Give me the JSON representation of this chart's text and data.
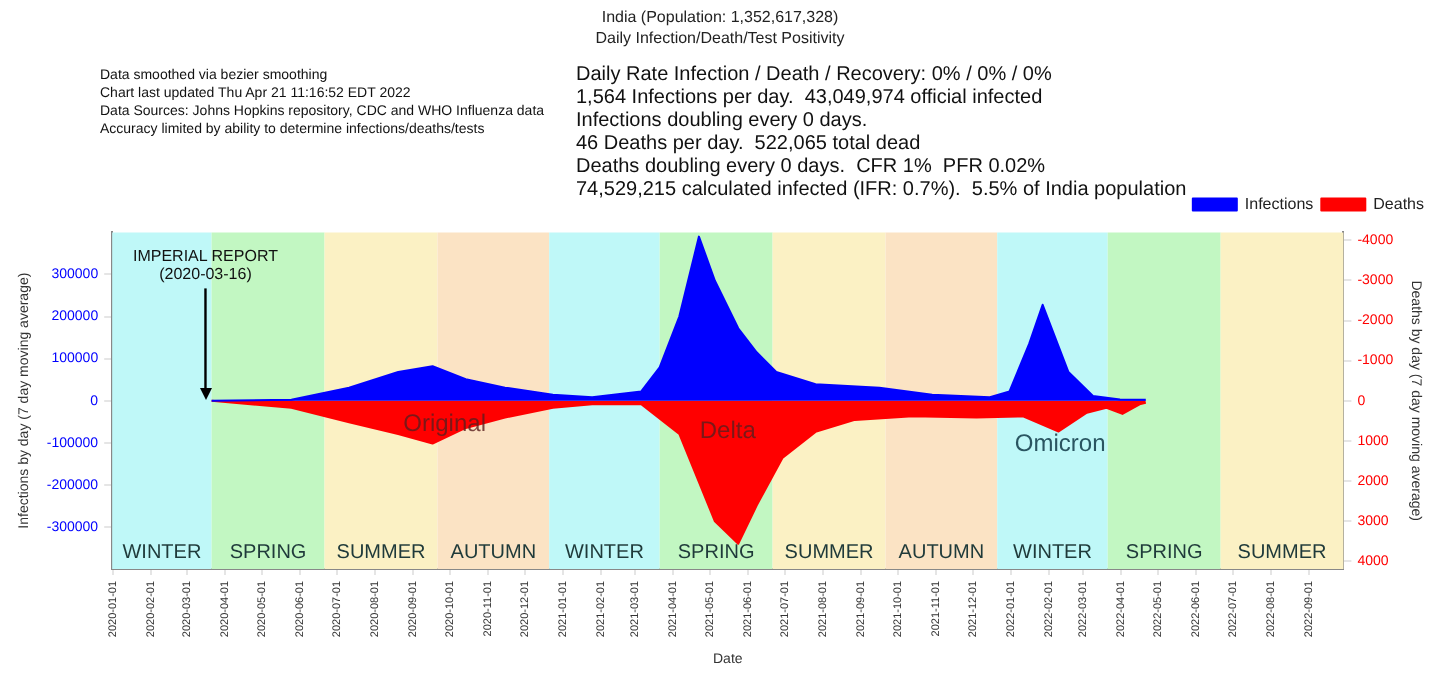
{
  "chart_data": {
    "type": "area",
    "title": "India (Population: 1,352,617,328)",
    "subtitle": "Daily Infection/Death/Test Positivity",
    "xlabel": "Date",
    "ylabel": "Infections by day (7 day moving average)",
    "y2label": "Deaths by day (7 day moving average)",
    "xlim": [
      "2019-12-31",
      "2022-09-29"
    ],
    "ylim": [
      -400000,
      400000
    ],
    "yticks": [
      -300000,
      -200000,
      -100000,
      0,
      100000,
      200000,
      300000
    ],
    "y2lim": [
      4200,
      -4200
    ],
    "y2ticks": [
      -4000,
      -3000,
      -2000,
      -1000,
      0,
      1000,
      2000,
      3000,
      4000
    ],
    "xticks": [
      "2020-01-01",
      "2020-02-01",
      "2020-03-01",
      "2020-04-01",
      "2020-05-01",
      "2020-06-01",
      "2020-07-01",
      "2020-08-01",
      "2020-09-01",
      "2020-10-01",
      "2020-11-01",
      "2020-12-01",
      "2021-01-01",
      "2021-02-01",
      "2021-03-01",
      "2021-04-01",
      "2021-05-01",
      "2021-06-01",
      "2021-07-01",
      "2021-08-01",
      "2021-09-01",
      "2021-10-01",
      "2021-11-01",
      "2021-12-01",
      "2022-01-01",
      "2022-02-01",
      "2022-03-01",
      "2022-04-01",
      "2022-05-01",
      "2022-06-01",
      "2022-07-01",
      "2022-08-01",
      "2022-09-01"
    ],
    "legend": "top right",
    "series": [
      {
        "name": "Infections",
        "color": "#0000ff",
        "x": [
          "2020-03-21",
          "2020-05-25",
          "2020-07-11",
          "2020-08-20",
          "2020-09-17",
          "2020-10-14",
          "2020-11-15",
          "2020-12-24",
          "2021-01-25",
          "2021-03-06",
          "2021-03-21",
          "2021-04-06",
          "2021-04-22",
          "2021-05-05",
          "2021-05-24",
          "2021-06-08",
          "2021-06-24",
          "2021-07-26",
          "2021-09-16",
          "2021-10-29",
          "2021-12-15",
          "2021-12-31",
          "2022-01-16",
          "2022-01-27",
          "2022-02-17",
          "2022-03-09",
          "2022-03-31",
          "2022-04-21"
        ],
        "values": [
          0,
          2000,
          31000,
          68000,
          82000,
          51000,
          31000,
          14000,
          8000,
          22000,
          79000,
          200000,
          390000,
          285000,
          172000,
          115000,
          68000,
          39000,
          31000,
          14000,
          8000,
          22000,
          135000,
          228000,
          68000,
          11000,
          3000,
          2000
        ]
      },
      {
        "name": "Deaths",
        "color": "#ff0000",
        "axis": "y2",
        "x": [
          "2020-03-21",
          "2020-05-25",
          "2020-07-11",
          "2020-08-20",
          "2020-09-17",
          "2020-10-14",
          "2020-11-15",
          "2020-12-24",
          "2021-01-25",
          "2021-03-06",
          "2021-04-06",
          "2021-05-05",
          "2021-05-24",
          "2021-06-08",
          "2021-06-29",
          "2021-07-26",
          "2021-08-27",
          "2021-10-13",
          "2021-12-04",
          "2022-01-11",
          "2022-02-09",
          "2022-03-04",
          "2022-03-20",
          "2022-04-02",
          "2022-04-16",
          "2022-04-21"
        ],
        "values": [
          0,
          180,
          540,
          830,
          1070,
          680,
          420,
          180,
          90,
          90,
          830,
          3010,
          3570,
          2620,
          1430,
          780,
          480,
          390,
          420,
          390,
          770,
          300,
          180,
          330,
          90,
          50
        ]
      }
    ],
    "bands": [
      {
        "axis": "x",
        "from": "2019-12-31",
        "to": "2020-03-21",
        "label": "WINTER",
        "color": "#bff8f8"
      },
      {
        "axis": "x",
        "from": "2020-03-21",
        "to": "2020-06-21",
        "label": "SPRING",
        "color": "#c2f7c2"
      },
      {
        "axis": "x",
        "from": "2020-06-21",
        "to": "2020-09-21",
        "label": "SUMMER",
        "color": "#fbf1c4"
      },
      {
        "axis": "x",
        "from": "2020-09-21",
        "to": "2020-12-21",
        "label": "AUTUMN",
        "color": "#fbe3c4"
      },
      {
        "axis": "x",
        "from": "2020-12-21",
        "to": "2021-03-21",
        "label": "WINTER",
        "color": "#bff8f8"
      },
      {
        "axis": "x",
        "from": "2021-03-21",
        "to": "2021-06-21",
        "label": "SPRING",
        "color": "#c2f7c2"
      },
      {
        "axis": "x",
        "from": "2021-06-21",
        "to": "2021-09-21",
        "label": "SUMMER",
        "color": "#fbf1c4"
      },
      {
        "axis": "x",
        "from": "2021-09-21",
        "to": "2021-12-21",
        "label": "AUTUMN",
        "color": "#fbe3c4"
      },
      {
        "axis": "x",
        "from": "2021-12-21",
        "to": "2022-03-21",
        "label": "WINTER",
        "color": "#bff8f8"
      },
      {
        "axis": "x",
        "from": "2022-03-21",
        "to": "2022-06-21",
        "label": "SPRING",
        "color": "#c2f7c2"
      },
      {
        "axis": "x",
        "from": "2022-06-21",
        "to": "2022-09-29",
        "label": "SUMMER",
        "color": "#fbf1c4"
      }
    ],
    "ref_lines": [
      {
        "axis": "x",
        "value": "2020-03-16",
        "label": "IMPERIAL REPORT (2020-03-16)"
      }
    ],
    "annotations": [
      "Data smoothed via bezier smoothing",
      "Chart last updated Thu Apr 21 11:16:52 EDT 2022",
      "Data Sources: Johns Hopkins repository, CDC and WHO Influenza data",
      "Accuracy limited by ability to determine infections/deaths/tests",
      "Daily Rate Infection / Death / Recovery: 0% / 0% / 0%",
      "1,564 Infections per day.  43,049,974 official infected",
      "Infections doubling every 0 days.",
      "46 Deaths per day.  522,065 total dead",
      "Deaths doubling every 0 days.  CFR 1%  PFR 0.02%",
      "74,529,215 calculated infected (IFR: 0.7%).  5.5% of India population",
      "Original",
      "Delta",
      "Omicron"
    ]
  }
}
